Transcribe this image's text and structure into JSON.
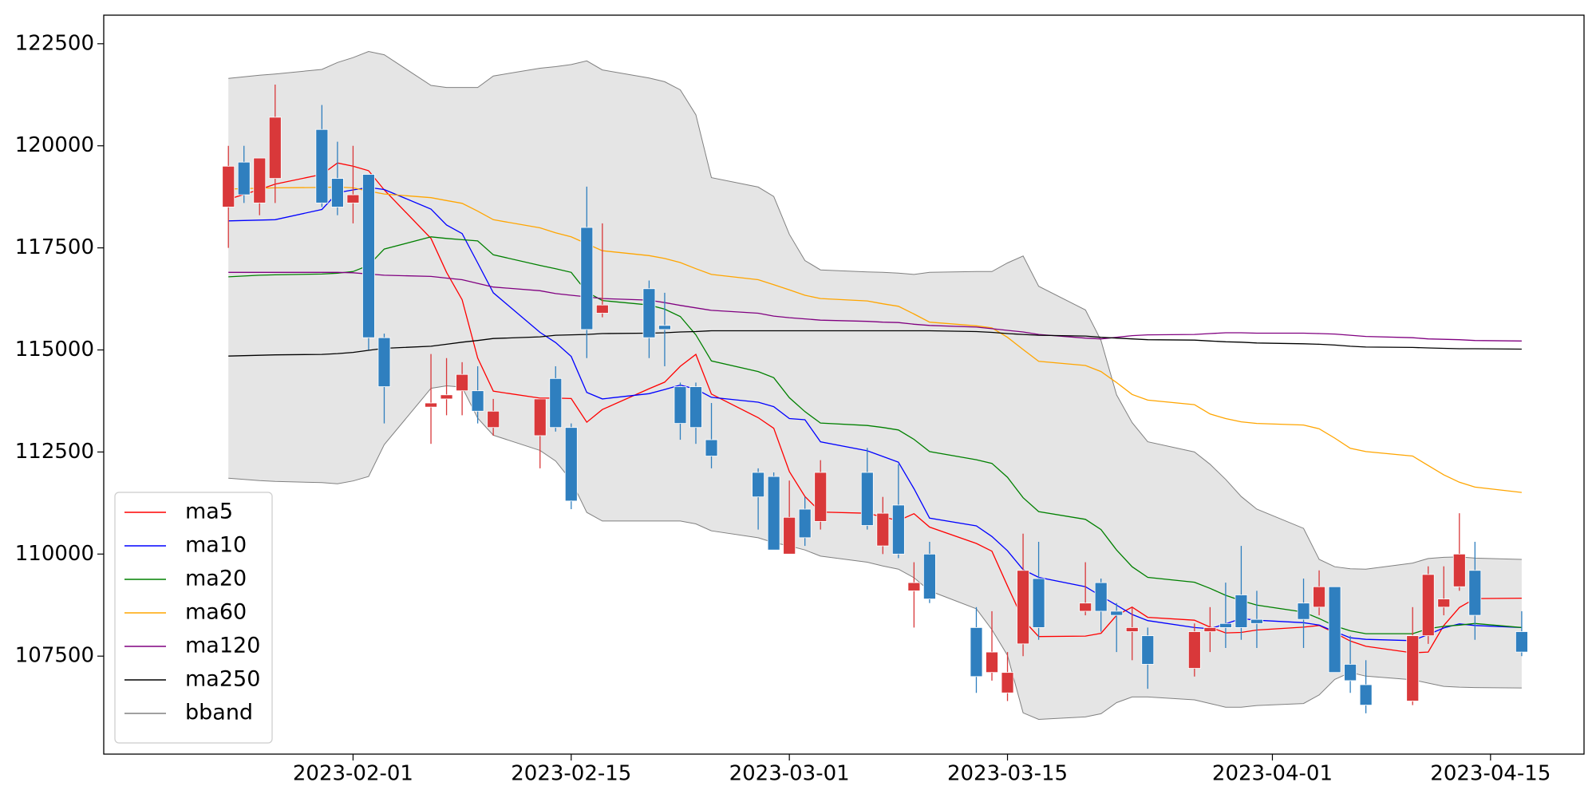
{
  "chart_data": {
    "type": "candlestick",
    "x": [
      "2023-01-24",
      "2023-01-25",
      "2023-01-26",
      "2023-01-27",
      "2023-01-30",
      "2023-01-31",
      "2023-02-01",
      "2023-02-02",
      "2023-02-03",
      "2023-02-06",
      "2023-02-07",
      "2023-02-08",
      "2023-02-09",
      "2023-02-10",
      "2023-02-13",
      "2023-02-14",
      "2023-02-15",
      "2023-02-16",
      "2023-02-17",
      "2023-02-20",
      "2023-02-21",
      "2023-02-22",
      "2023-02-23",
      "2023-02-24",
      "2023-02-27",
      "2023-02-28",
      "2023-03-01",
      "2023-03-02",
      "2023-03-03",
      "2023-03-06",
      "2023-03-07",
      "2023-03-08",
      "2023-03-09",
      "2023-03-10",
      "2023-03-13",
      "2023-03-14",
      "2023-03-15",
      "2023-03-16",
      "2023-03-17",
      "2023-03-20",
      "2023-03-21",
      "2023-03-22",
      "2023-03-23",
      "2023-03-24",
      "2023-03-27",
      "2023-03-28",
      "2023-03-29",
      "2023-03-30",
      "2023-03-31",
      "2023-04-03",
      "2023-04-04",
      "2023-04-05",
      "2023-04-06",
      "2023-04-07",
      "2023-04-10",
      "2023-04-11",
      "2023-04-12",
      "2023-04-13",
      "2023-04-14",
      "2023-04-17"
    ],
    "candles": {
      "up_color": "#d9383a",
      "down_color": "#2f7fbf",
      "open": [
        118500,
        119600,
        118600,
        119200,
        120400,
        119200,
        118600,
        119300,
        115300,
        113600,
        113800,
        114000,
        114000,
        113100,
        112900,
        114300,
        113100,
        118000,
        115900,
        116500,
        115600,
        114100,
        114100,
        112800,
        112000,
        111900,
        110000,
        111100,
        110800,
        112000,
        110200,
        111200,
        109100,
        110000,
        108200,
        107100,
        106600,
        107800,
        109400,
        108600,
        109300,
        108600,
        108100,
        108000,
        107200,
        108100,
        108300,
        109000,
        108400,
        108800,
        108700,
        109200,
        107300,
        106800,
        106400,
        108000,
        108700,
        109200,
        109600,
        108100
      ],
      "high": [
        120000,
        120000,
        119700,
        121500,
        121000,
        120100,
        120000,
        119300,
        115400,
        114900,
        114800,
        114700,
        114600,
        113800,
        113800,
        114600,
        113200,
        119000,
        118100,
        116700,
        116400,
        114200,
        114200,
        113700,
        112100,
        112000,
        111800,
        111400,
        112300,
        112600,
        111400,
        112200,
        109800,
        110300,
        108700,
        108600,
        107600,
        110500,
        110300,
        109800,
        109400,
        108800,
        108700,
        108200,
        108300,
        108700,
        109300,
        110200,
        109100,
        109400,
        109600,
        109200,
        108000,
        107400,
        108700,
        109700,
        109700,
        111000,
        110300,
        108600
      ],
      "low": [
        117500,
        118600,
        118300,
        118600,
        118500,
        118300,
        118100,
        115000,
        113200,
        112700,
        113400,
        113400,
        113200,
        112900,
        112100,
        113000,
        111100,
        114800,
        115800,
        114800,
        114600,
        112800,
        112700,
        112100,
        110600,
        110100,
        110000,
        110200,
        110600,
        110600,
        110000,
        109900,
        108200,
        108800,
        106600,
        106900,
        106400,
        107500,
        107900,
        108500,
        108100,
        107600,
        107400,
        106700,
        107000,
        107600,
        107700,
        107900,
        107700,
        107700,
        108500,
        107100,
        106600,
        106100,
        106300,
        107800,
        108500,
        109100,
        107900,
        107500
      ],
      "close": [
        119500,
        118800,
        119700,
        120700,
        118600,
        118500,
        118800,
        115300,
        114100,
        113700,
        113900,
        114400,
        113500,
        113500,
        113800,
        113100,
        111300,
        115500,
        116100,
        115300,
        115500,
        113200,
        113100,
        112400,
        111400,
        110100,
        110900,
        110400,
        112000,
        110700,
        111000,
        110000,
        109300,
        108900,
        107000,
        107600,
        107100,
        109600,
        108200,
        108800,
        108600,
        108500,
        108200,
        107300,
        108100,
        108200,
        108200,
        108200,
        108300,
        108400,
        109200,
        107100,
        106900,
        106300,
        108000,
        109500,
        108900,
        110000,
        108500,
        107600
      ]
    },
    "series": [
      {
        "name": "ma5",
        "color": "#ff0000",
        "values": [
          118690,
          118810,
          118930,
          119060,
          119300,
          119580,
          119500,
          119390,
          118920,
          117730,
          116900,
          116230,
          114800,
          113990,
          113820,
          113820,
          113810,
          113230,
          113540,
          114050,
          114210,
          114600,
          114890,
          113920,
          113340,
          113080,
          112020,
          111410,
          111030,
          111000,
          110910,
          110820,
          110990,
          110660,
          110260,
          110070,
          109220,
          108390,
          107980,
          107990,
          108060,
          108500,
          108700,
          108450,
          108380,
          108210,
          108070,
          108080,
          108140,
          108210,
          108250,
          108070,
          107870,
          107740,
          107580,
          107600,
          108250,
          108690,
          108910,
          108920
        ]
      },
      {
        "name": "ma10",
        "color": "#0000ff",
        "values": [
          118160,
          118170,
          118180,
          118190,
          118440,
          118850,
          118920,
          118980,
          118930,
          118450,
          118060,
          117850,
          117130,
          116400,
          115430,
          115180,
          114840,
          113960,
          113800,
          113930,
          114030,
          114140,
          114040,
          113840,
          113720,
          113610,
          113320,
          113290,
          112750,
          112530,
          112390,
          112250,
          111600,
          110880,
          110690,
          110430,
          110080,
          109620,
          109430,
          109200,
          108970,
          108750,
          108520,
          108370,
          108200,
          108170,
          108290,
          108420,
          108380,
          108320,
          108260,
          108100,
          107950,
          107910,
          107880,
          108030,
          108190,
          108290,
          108250,
          108200
        ]
      },
      {
        "name": "ma20",
        "color": "#008000",
        "values": [
          116790,
          116810,
          116830,
          116840,
          116860,
          116880,
          116920,
          117070,
          117470,
          117770,
          117730,
          117700,
          117670,
          117330,
          117070,
          116990,
          116900,
          116420,
          116210,
          116100,
          116000,
          115820,
          115370,
          114730,
          114470,
          114320,
          113830,
          113490,
          113210,
          113150,
          113100,
          113040,
          112810,
          112510,
          112310,
          112220,
          111880,
          111380,
          111040,
          110850,
          110600,
          110100,
          109690,
          109430,
          109310,
          109160,
          108990,
          108860,
          108750,
          108580,
          108420,
          108240,
          108120,
          108050,
          108050,
          108170,
          108230,
          108260,
          108300,
          108200
        ]
      },
      {
        "name": "ma60",
        "color": "#ffa500",
        "values": [
          118940,
          118950,
          118960,
          118970,
          118980,
          118990,
          118970,
          118890,
          118820,
          118730,
          118660,
          118590,
          118400,
          118190,
          117990,
          117870,
          117770,
          117600,
          117430,
          117310,
          117240,
          117140,
          116990,
          116850,
          116720,
          116600,
          116470,
          116340,
          116260,
          116200,
          116130,
          116070,
          115880,
          115680,
          115590,
          115540,
          115310,
          115010,
          114720,
          114620,
          114470,
          114200,
          113910,
          113770,
          113660,
          113430,
          113320,
          113240,
          113200,
          113160,
          113070,
          112840,
          112590,
          112510,
          112400,
          112170,
          111940,
          111760,
          111640,
          111510
        ]
      },
      {
        "name": "ma120",
        "color": "#800080",
        "values": [
          116900,
          116900,
          116900,
          116900,
          116900,
          116900,
          116890,
          116860,
          116830,
          116800,
          116760,
          116720,
          116630,
          116540,
          116450,
          116380,
          116340,
          116300,
          116260,
          116220,
          116160,
          116090,
          116030,
          115970,
          115900,
          115830,
          115790,
          115760,
          115730,
          115700,
          115680,
          115670,
          115630,
          115600,
          115560,
          115520,
          115480,
          115440,
          115380,
          115290,
          115270,
          115310,
          115350,
          115370,
          115380,
          115400,
          115420,
          115420,
          115410,
          115410,
          115400,
          115390,
          115360,
          115330,
          115300,
          115270,
          115260,
          115250,
          115230,
          115220
        ]
      },
      {
        "name": "ma250",
        "color": "#000000",
        "values": [
          114850,
          114860,
          114870,
          114880,
          114890,
          114910,
          114940,
          114990,
          115040,
          115090,
          115140,
          115190,
          115230,
          115280,
          115320,
          115360,
          115370,
          115380,
          115400,
          115410,
          115420,
          115440,
          115450,
          115470,
          115470,
          115470,
          115470,
          115470,
          115470,
          115470,
          115470,
          115470,
          115470,
          115470,
          115450,
          115430,
          115400,
          115380,
          115360,
          115340,
          115310,
          115290,
          115270,
          115250,
          115240,
          115220,
          115200,
          115190,
          115170,
          115150,
          115140,
          115120,
          115090,
          115070,
          115060,
          115050,
          115040,
          115030,
          115030,
          115020
        ]
      }
    ],
    "bband": {
      "name": "bband",
      "color": "#808080",
      "fill": "#e5e5e5",
      "upper": [
        121650,
        121690,
        121730,
        121760,
        121870,
        122040,
        122160,
        122310,
        122230,
        121480,
        121430,
        121430,
        121430,
        121710,
        121900,
        121940,
        121990,
        122080,
        121860,
        121660,
        121570,
        121370,
        120760,
        119220,
        118990,
        118760,
        117830,
        117190,
        116960,
        116910,
        116900,
        116880,
        116850,
        116900,
        116920,
        116920,
        117130,
        117300,
        116560,
        115980,
        115230,
        113900,
        113220,
        112750,
        112500,
        112200,
        111830,
        111410,
        111100,
        110630,
        109870,
        109690,
        109640,
        109630,
        109780,
        109890,
        109920,
        109930,
        109900,
        109870
      ],
      "lower": [
        111860,
        111830,
        111800,
        111780,
        111750,
        111720,
        111790,
        111900,
        112680,
        114060,
        114120,
        114090,
        113330,
        112910,
        112540,
        112280,
        111800,
        111020,
        110810,
        110810,
        110810,
        110810,
        110740,
        110570,
        110400,
        110280,
        110200,
        110100,
        109950,
        109800,
        109710,
        109630,
        109420,
        109100,
        108660,
        108150,
        107520,
        106110,
        105950,
        106010,
        106090,
        106360,
        106500,
        106500,
        106430,
        106340,
        106250,
        106250,
        106290,
        106340,
        106550,
        106930,
        107100,
        107010,
        106920,
        106840,
        106760,
        106740,
        106730,
        106720
      ]
    },
    "xlim": [
      "2023-01-16",
      "2023-04-21"
    ],
    "xticks": [
      "2023-02-01",
      "2023-02-15",
      "2023-03-01",
      "2023-03-15",
      "2023-04-01",
      "2023-04-15"
    ],
    "ylim": [
      105100,
      123200
    ],
    "yticks": [
      107500,
      110000,
      112500,
      115000,
      117500,
      120000,
      122500
    ],
    "legend": "lower left"
  }
}
